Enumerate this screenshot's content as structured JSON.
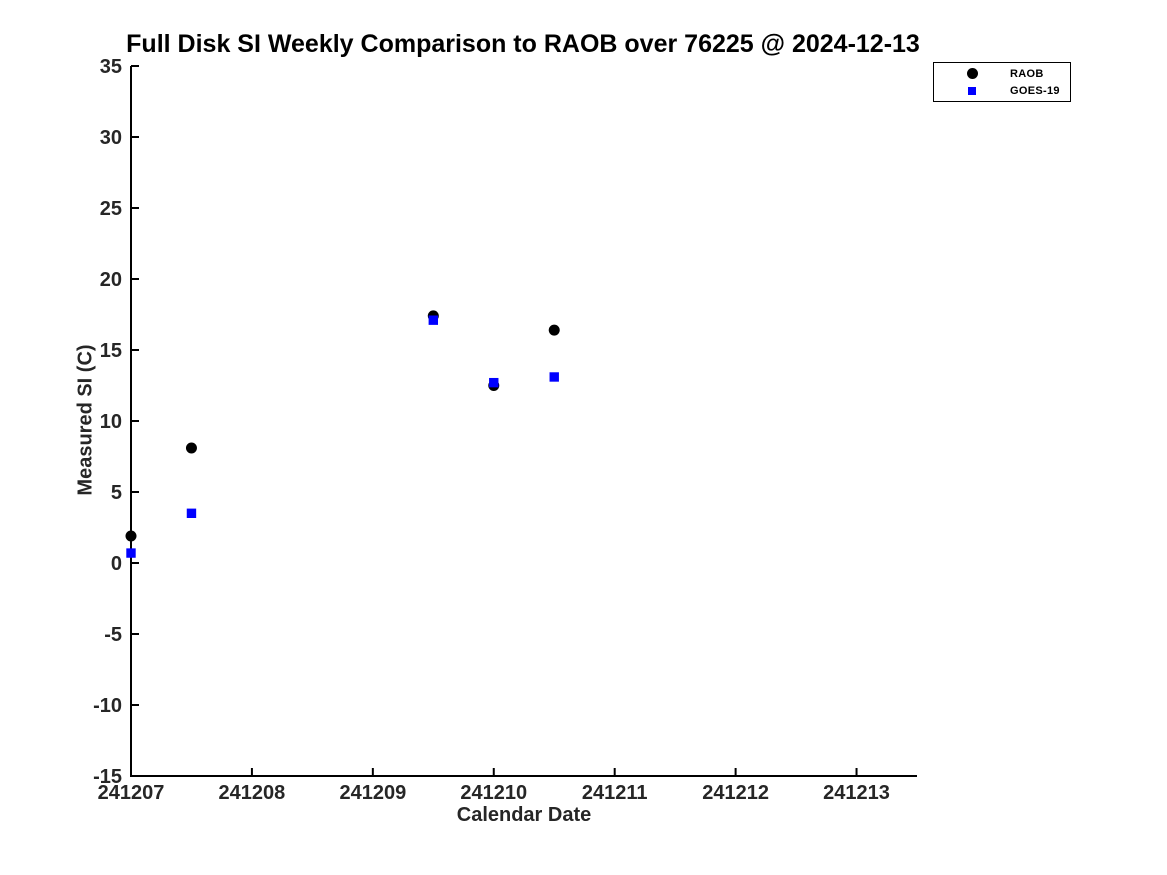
{
  "chart_data": {
    "type": "scatter",
    "title": "Full Disk SI Weekly Comparison to RAOB over 76225 @ 2024-12-13",
    "xlabel": "Calendar Date",
    "ylabel": "Measured SI (C)",
    "xlim": [
      241207,
      241213.5
    ],
    "ylim": [
      -15,
      35
    ],
    "xtick_values": [
      241207,
      241208,
      241209,
      241210,
      241211,
      241212,
      241213
    ],
    "xtick_labels": [
      "241207",
      "241208",
      "241209",
      "241210",
      "241211",
      "241212",
      "241213"
    ],
    "ytick_values": [
      35,
      30,
      25,
      20,
      15,
      10,
      5,
      0,
      -5,
      -10,
      -15
    ],
    "ytick_labels": [
      "35",
      "30",
      "25",
      "20",
      "15",
      "10",
      "5",
      "0",
      "-5",
      "-10",
      "-15"
    ],
    "grid": false,
    "legend_position": "top-right",
    "axis_color": "#000000",
    "series": [
      {
        "name": "RAOB",
        "marker": "circle",
        "color": "#000000",
        "points": [
          [
            241207.0,
            1.9
          ],
          [
            241207.5,
            8.1
          ],
          [
            241209.5,
            17.4
          ],
          [
            241210.0,
            12.5
          ],
          [
            241210.5,
            16.4
          ]
        ]
      },
      {
        "name": "GOES-19",
        "marker": "square",
        "color": "#0000ff",
        "points": [
          [
            241207.0,
            0.7
          ],
          [
            241207.5,
            3.5
          ],
          [
            241209.5,
            17.1
          ],
          [
            241210.0,
            12.7
          ],
          [
            241210.5,
            13.1
          ]
        ]
      }
    ]
  }
}
